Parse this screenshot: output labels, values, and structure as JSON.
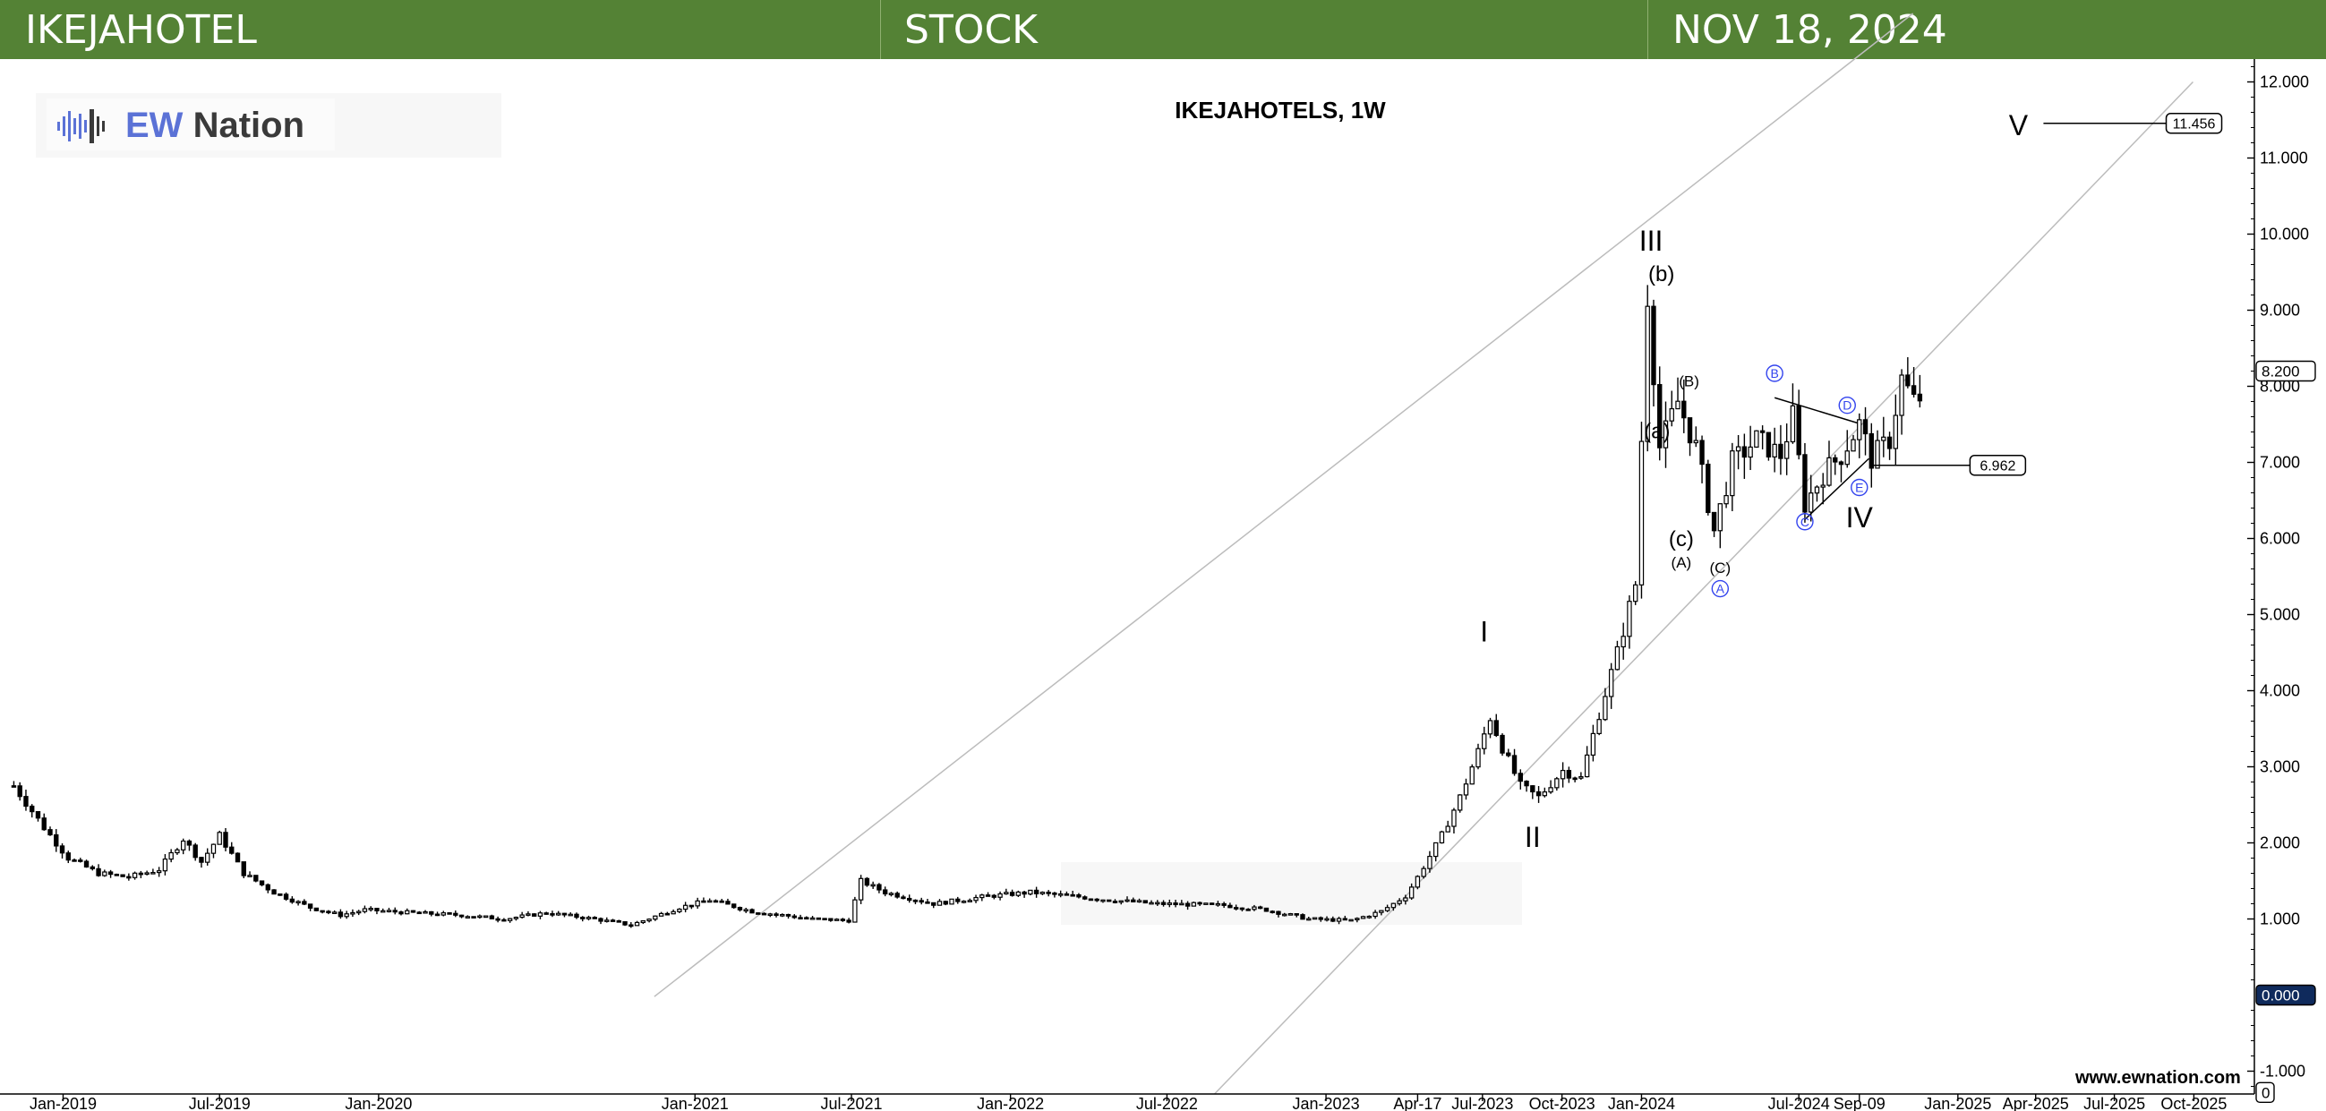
{
  "header": {
    "symbol": "IKEJAHOTEL",
    "asset_type": "STOCK",
    "date": "NOV 18, 2024",
    "background_color": "#548235"
  },
  "logo": {
    "ew": "EW",
    "nation": "Nation",
    "accent_color": "#5b72d6"
  },
  "website": "www.ewnation.com",
  "chart_data": {
    "type": "candlestick",
    "title": "IKEJAHOTELS, 1W",
    "xlabel": "",
    "ylabel": "",
    "ylim": [
      -1.3,
      12.3
    ],
    "y_ticks": [
      "12.000",
      "11.000",
      "10.000",
      "9.000",
      "8.000",
      "7.000",
      "6.000",
      "5.000",
      "4.000",
      "3.000",
      "2.000",
      "1.000",
      "-1.000"
    ],
    "y_tick_values": [
      12,
      11,
      10,
      9,
      8,
      7,
      6,
      5,
      4,
      3,
      2,
      1,
      -1
    ],
    "x_ticks": [
      "Jan-2019",
      "Jul-2019",
      "Jan-2020",
      "Jan-2021",
      "Jul-2021",
      "Jan-2022",
      "Jul-2022",
      "Jan-2023",
      "Apr-17",
      "Jul-2023",
      "Oct-2023",
      "Jan-2024",
      "Jul-2024",
      "Sep-09",
      "Jan-2025",
      "Apr-2025",
      "Jul-2025",
      "Oct-2025"
    ],
    "x_tick_dates": [
      "2019-01-01",
      "2019-07-01",
      "2020-01-01",
      "2021-01-01",
      "2021-07-01",
      "2022-01-01",
      "2022-07-01",
      "2023-01-01",
      "2023-04-17",
      "2023-07-01",
      "2023-10-01",
      "2024-01-01",
      "2024-07-01",
      "2024-09-09",
      "2025-01-01",
      "2025-04-01",
      "2025-07-01",
      "2025-10-01"
    ],
    "x_range": [
      "2018-10-20",
      "2025-12-10"
    ],
    "price_tags": [
      {
        "label": "8.200",
        "value": 8.2
      },
      {
        "label": "0.000",
        "value": 0.0
      },
      {
        "label": "0",
        "value": -1.28
      }
    ],
    "target_boxes": [
      {
        "label": "11.456",
        "value": 11.456,
        "from": "2025-04-10",
        "to": "2025-08-30"
      },
      {
        "label": "6.962",
        "value": 6.962,
        "from": "2024-09-25",
        "to": "2025-01-15"
      }
    ],
    "series": [
      {
        "name": "",
        "type": "weekly_ohlc_keypoints",
        "points": [
          [
            "2018-11-05",
            2.75
          ],
          [
            "2018-12-10",
            2.2
          ],
          [
            "2019-01-07",
            1.8
          ],
          [
            "2019-02-11",
            1.6
          ],
          [
            "2019-03-18",
            1.55
          ],
          [
            "2019-04-22",
            1.65
          ],
          [
            "2019-05-20",
            2.05
          ],
          [
            "2019-06-10",
            1.75
          ],
          [
            "2019-07-01",
            2.1
          ],
          [
            "2019-07-29",
            1.6
          ],
          [
            "2019-09-02",
            1.35
          ],
          [
            "2019-10-14",
            1.15
          ],
          [
            "2019-11-18",
            1.05
          ],
          [
            "2019-12-16",
            1.12
          ],
          [
            "2020-02-10",
            1.08
          ],
          [
            "2020-04-06",
            1.05
          ],
          [
            "2020-05-25",
            1.0
          ],
          [
            "2020-07-13",
            1.08
          ],
          [
            "2020-09-07",
            1.0
          ],
          [
            "2020-10-19",
            0.92
          ],
          [
            "2020-12-14",
            1.15
          ],
          [
            "2021-01-18",
            1.25
          ],
          [
            "2021-03-08",
            1.1
          ],
          [
            "2021-05-17",
            1.0
          ],
          [
            "2021-06-28",
            0.98
          ],
          [
            "2021-07-12",
            1.5
          ],
          [
            "2021-08-09",
            1.35
          ],
          [
            "2021-10-04",
            1.2
          ],
          [
            "2021-12-06",
            1.3
          ],
          [
            "2022-01-24",
            1.35
          ],
          [
            "2022-03-14",
            1.3
          ],
          [
            "2022-04-25",
            1.25
          ],
          [
            "2022-06-20",
            1.2
          ],
          [
            "2022-09-05",
            1.18
          ],
          [
            "2022-10-24",
            1.12
          ],
          [
            "2022-12-12",
            1.0
          ],
          [
            "2023-01-30",
            0.98
          ],
          [
            "2023-03-06",
            1.1
          ],
          [
            "2023-04-03",
            1.3
          ],
          [
            "2023-04-17",
            1.55
          ],
          [
            "2023-05-15",
            2.1
          ],
          [
            "2023-06-05",
            2.6
          ],
          [
            "2023-06-26",
            3.2
          ],
          [
            "2023-07-10",
            3.65
          ],
          [
            "2023-07-24",
            3.25
          ],
          [
            "2023-08-14",
            2.75
          ],
          [
            "2023-09-04",
            2.6
          ],
          [
            "2023-10-02",
            2.95
          ],
          [
            "2023-10-23",
            2.85
          ],
          [
            "2023-11-13",
            3.7
          ],
          [
            "2023-12-04",
            4.5
          ],
          [
            "2023-12-25",
            5.4
          ],
          [
            "2024-01-08",
            9.2
          ],
          [
            "2024-01-22",
            7.2
          ],
          [
            "2024-02-12",
            7.8
          ],
          [
            "2024-03-04",
            7.2
          ],
          [
            "2024-03-25",
            6.1
          ],
          [
            "2024-04-15",
            7.0
          ],
          [
            "2024-05-13",
            7.3
          ],
          [
            "2024-06-10",
            7.1
          ],
          [
            "2024-06-24",
            7.6
          ],
          [
            "2024-07-08",
            6.45
          ],
          [
            "2024-07-29",
            6.85
          ],
          [
            "2024-08-19",
            7.1
          ],
          [
            "2024-09-09",
            7.5
          ],
          [
            "2024-09-23",
            7.05
          ],
          [
            "2024-10-14",
            7.3
          ],
          [
            "2024-10-28",
            8.1
          ],
          [
            "2024-11-11",
            7.8
          ],
          [
            "2024-11-18",
            7.85
          ]
        ]
      }
    ],
    "channel_lines": [
      {
        "from": [
          "2020-11-15",
          -0.02
        ],
        "to": [
          "2024-11-10",
          12.9
        ]
      },
      {
        "from": [
          "2022-08-25",
          -1.3
        ],
        "to": [
          "2025-09-30",
          12.0
        ]
      }
    ],
    "triangle_lines": [
      {
        "from": [
          "2024-06-03",
          7.85
        ],
        "to": [
          "2024-09-12",
          7.5
        ]
      },
      {
        "from": [
          "2024-07-08",
          6.25
        ],
        "to": [
          "2024-09-20",
          7.05
        ]
      }
    ],
    "wave_labels": [
      {
        "text": "V",
        "x": "2025-03-12",
        "y": 11.3,
        "style": "roman"
      },
      {
        "text": "III",
        "x": "2024-01-12",
        "y": 9.78,
        "style": "roman"
      },
      {
        "text": "(b)",
        "x": "2024-01-24",
        "y": 9.38,
        "style": "minor"
      },
      {
        "text": "(a)",
        "x": "2024-01-19",
        "y": 7.32,
        "style": "minor"
      },
      {
        "text": "(B)",
        "x": "2024-02-25",
        "y": 8.0,
        "style": "small"
      },
      {
        "text": "(c)",
        "x": "2024-02-16",
        "y": 5.9,
        "style": "minor"
      },
      {
        "text": "(A)",
        "x": "2024-02-16",
        "y": 5.62,
        "style": "small"
      },
      {
        "text": "(C)",
        "x": "2024-04-01",
        "y": 5.55,
        "style": "small"
      },
      {
        "text": "A",
        "x": "2024-04-01",
        "y": 5.27,
        "style": "circle"
      },
      {
        "text": "B",
        "x": "2024-06-03",
        "y": 8.1,
        "style": "circle"
      },
      {
        "text": "C",
        "x": "2024-07-08",
        "y": 6.15,
        "style": "circle"
      },
      {
        "text": "D",
        "x": "2024-08-26",
        "y": 7.68,
        "style": "circle"
      },
      {
        "text": "E",
        "x": "2024-09-09",
        "y": 6.6,
        "style": "circle"
      },
      {
        "text": "IV",
        "x": "2024-09-09",
        "y": 6.15,
        "style": "roman"
      },
      {
        "text": "I",
        "x": "2023-07-03",
        "y": 4.65,
        "style": "roman"
      },
      {
        "text": "II",
        "x": "2023-08-28",
        "y": 1.95,
        "style": "roman"
      }
    ]
  }
}
